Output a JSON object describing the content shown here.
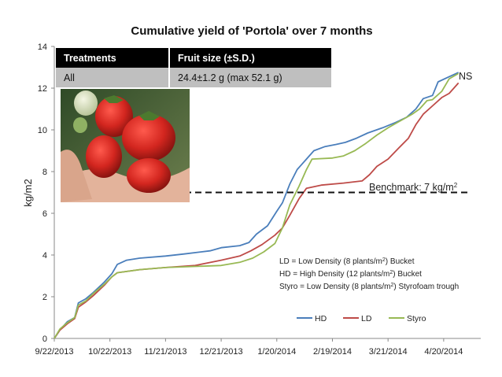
{
  "chart_data": {
    "type": "line",
    "title": "Cumulative yield of 'Portola' over 7 months",
    "xlabel": "",
    "ylabel": "kg/m2",
    "ylim": [
      0,
      14
    ],
    "yticks": [
      "0",
      "2",
      "4",
      "6",
      "8",
      "10",
      "12",
      "14"
    ],
    "x_start": "2013-09-22",
    "xlim": [
      "2013-09-22",
      "2014-05-10"
    ],
    "xtick_labels": [
      "9/22/2013",
      "10/22/2013",
      "11/21/2013",
      "12/21/2013",
      "1/20/2014",
      "2/19/2014",
      "3/21/2014",
      "4/20/2014"
    ],
    "xtick_dates": [
      "2013-09-22",
      "2013-10-22",
      "2013-11-21",
      "2013-12-21",
      "2014-01-20",
      "2014-02-19",
      "2014-03-21",
      "2014-04-20"
    ],
    "grid": false,
    "legend_position": "bottom",
    "series": [
      {
        "name": "HD",
        "color": "#4a7ebb",
        "points": [
          [
            "2013-09-22",
            0.0
          ],
          [
            "2013-09-25",
            0.4
          ],
          [
            "2013-09-29",
            0.8
          ],
          [
            "2013-10-03",
            1.0
          ],
          [
            "2013-10-05",
            1.7
          ],
          [
            "2013-10-09",
            1.9
          ],
          [
            "2013-10-13",
            2.2
          ],
          [
            "2013-10-19",
            2.7
          ],
          [
            "2013-10-23",
            3.1
          ],
          [
            "2013-10-26",
            3.55
          ],
          [
            "2013-10-31",
            3.75
          ],
          [
            "2013-11-07",
            3.85
          ],
          [
            "2013-11-21",
            3.95
          ],
          [
            "2013-12-01",
            4.05
          ],
          [
            "2013-12-15",
            4.2
          ],
          [
            "2013-12-21",
            4.35
          ],
          [
            "2013-12-31",
            4.45
          ],
          [
            "2014-01-05",
            4.6
          ],
          [
            "2014-01-09",
            5.0
          ],
          [
            "2014-01-15",
            5.4
          ],
          [
            "2014-01-20",
            6.1
          ],
          [
            "2014-01-23",
            6.5
          ],
          [
            "2014-01-27",
            7.4
          ],
          [
            "2014-01-31",
            8.1
          ],
          [
            "2014-02-05",
            8.6
          ],
          [
            "2014-02-09",
            9.0
          ],
          [
            "2014-02-15",
            9.2
          ],
          [
            "2014-02-21",
            9.3
          ],
          [
            "2014-02-26",
            9.4
          ],
          [
            "2014-03-04",
            9.6
          ],
          [
            "2014-03-10",
            9.85
          ],
          [
            "2014-03-18",
            10.1
          ],
          [
            "2014-03-25",
            10.35
          ],
          [
            "2014-03-31",
            10.6
          ],
          [
            "2014-04-05",
            11.0
          ],
          [
            "2014-04-09",
            11.5
          ],
          [
            "2014-04-14",
            11.65
          ],
          [
            "2014-04-17",
            12.3
          ],
          [
            "2014-04-23",
            12.55
          ],
          [
            "2014-04-28",
            12.75
          ]
        ]
      },
      {
        "name": "LD",
        "color": "#be4b48",
        "points": [
          [
            "2013-09-22",
            0.0
          ],
          [
            "2013-09-25",
            0.4
          ],
          [
            "2013-09-29",
            0.7
          ],
          [
            "2013-10-03",
            0.95
          ],
          [
            "2013-10-05",
            1.5
          ],
          [
            "2013-10-09",
            1.75
          ],
          [
            "2013-10-13",
            2.05
          ],
          [
            "2013-10-19",
            2.55
          ],
          [
            "2013-10-23",
            2.95
          ],
          [
            "2013-10-26",
            3.15
          ],
          [
            "2013-11-07",
            3.3
          ],
          [
            "2013-11-21",
            3.4
          ],
          [
            "2013-12-07",
            3.5
          ],
          [
            "2013-12-21",
            3.75
          ],
          [
            "2013-12-31",
            3.95
          ],
          [
            "2014-01-06",
            4.2
          ],
          [
            "2014-01-12",
            4.5
          ],
          [
            "2014-01-19",
            4.95
          ],
          [
            "2014-01-23",
            5.3
          ],
          [
            "2014-01-27",
            5.9
          ],
          [
            "2014-02-01",
            6.7
          ],
          [
            "2014-02-05",
            7.2
          ],
          [
            "2014-02-13",
            7.35
          ],
          [
            "2014-02-25",
            7.45
          ],
          [
            "2014-03-07",
            7.55
          ],
          [
            "2014-03-11",
            7.85
          ],
          [
            "2014-03-15",
            8.25
          ],
          [
            "2014-03-21",
            8.6
          ],
          [
            "2014-03-27",
            9.15
          ],
          [
            "2014-04-01",
            9.6
          ],
          [
            "2014-04-05",
            10.25
          ],
          [
            "2014-04-09",
            10.75
          ],
          [
            "2014-04-14",
            11.15
          ],
          [
            "2014-04-19",
            11.55
          ],
          [
            "2014-04-23",
            11.75
          ],
          [
            "2014-04-28",
            12.25
          ]
        ]
      },
      {
        "name": "Styro",
        "color": "#98b954",
        "points": [
          [
            "2013-09-22",
            0.0
          ],
          [
            "2013-09-25",
            0.45
          ],
          [
            "2013-09-29",
            0.75
          ],
          [
            "2013-10-03",
            1.0
          ],
          [
            "2013-10-05",
            1.6
          ],
          [
            "2013-10-09",
            1.8
          ],
          [
            "2013-10-13",
            2.15
          ],
          [
            "2013-10-19",
            2.6
          ],
          [
            "2013-10-23",
            2.95
          ],
          [
            "2013-10-26",
            3.15
          ],
          [
            "2013-11-07",
            3.3
          ],
          [
            "2013-11-21",
            3.4
          ],
          [
            "2013-12-21",
            3.5
          ],
          [
            "2013-12-31",
            3.65
          ],
          [
            "2014-01-07",
            3.85
          ],
          [
            "2014-01-13",
            4.15
          ],
          [
            "2014-01-19",
            4.55
          ],
          [
            "2014-01-23",
            5.3
          ],
          [
            "2014-01-27",
            6.4
          ],
          [
            "2014-02-01",
            7.3
          ],
          [
            "2014-02-05",
            8.1
          ],
          [
            "2014-02-08",
            8.6
          ],
          [
            "2014-02-19",
            8.65
          ],
          [
            "2014-02-25",
            8.75
          ],
          [
            "2014-03-03",
            9.0
          ],
          [
            "2014-03-09",
            9.35
          ],
          [
            "2014-03-15",
            9.75
          ],
          [
            "2014-03-21",
            10.1
          ],
          [
            "2014-03-27",
            10.4
          ],
          [
            "2014-04-03",
            10.75
          ],
          [
            "2014-04-07",
            11.0
          ],
          [
            "2014-04-11",
            11.4
          ],
          [
            "2014-04-14",
            11.45
          ],
          [
            "2014-04-19",
            11.85
          ],
          [
            "2014-04-23",
            12.45
          ],
          [
            "2014-04-28",
            12.7
          ]
        ]
      }
    ],
    "reference_line": {
      "y": 7,
      "label": "Benchmark: 7 kg/m",
      "unit_superscript": "2"
    },
    "annotation": "NS",
    "notes": [
      {
        "text": "LD = Low Density (8 plants/m",
        "sup": "2",
        "tail": ") Bucket"
      },
      {
        "text": "HD = High Density (12 plants/m",
        "sup": "2",
        "tail": ") Bucket"
      },
      {
        "text": "Styro = Low Density (8 plants/m",
        "sup": "2",
        "tail": ") Styrofoam trough"
      }
    ]
  },
  "table": {
    "headers": [
      "Treatments",
      "Fruit size (±S.D.)"
    ],
    "rows": [
      [
        "All",
        "24.4±1.2 g (max 52.1 g)"
      ]
    ]
  }
}
